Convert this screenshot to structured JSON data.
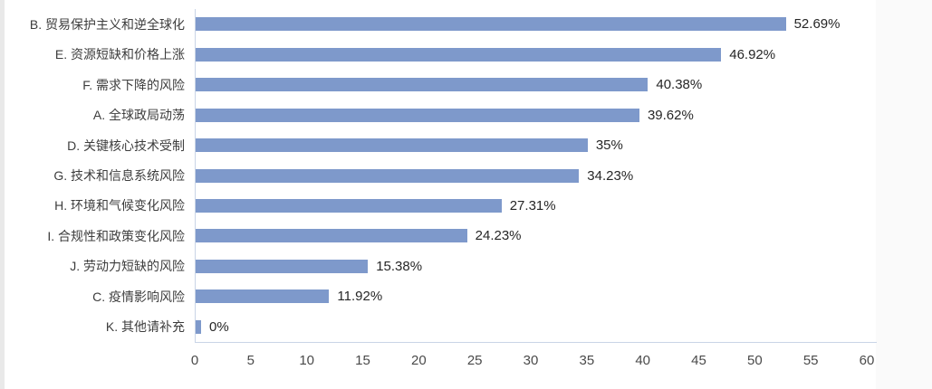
{
  "chart_data": {
    "type": "bar",
    "orientation": "horizontal",
    "title": "",
    "xlabel": "",
    "ylabel": "",
    "categories": [
      "B. 贸易保护主义和逆全球化",
      "E. 资源短缺和价格上涨",
      "F. 需求下降的风险",
      "A. 全球政局动荡",
      "D. 关键核心技术受制",
      "G. 技术和信息系统风险",
      "H. 环境和气候变化风险",
      "I. 合规性和政策变化风险",
      "J. 劳动力短缺的风险",
      "C. 疫情影响风险",
      "K. 其他请补充"
    ],
    "values": [
      52.69,
      46.92,
      40.38,
      39.62,
      35,
      34.23,
      27.31,
      24.23,
      15.38,
      11.92,
      0
    ],
    "value_labels": [
      "52.69%",
      "46.92%",
      "40.38%",
      "39.62%",
      "35%",
      "34.23%",
      "27.31%",
      "24.23%",
      "15.38%",
      "11.92%",
      "0%"
    ],
    "x_ticks": [
      0,
      5,
      10,
      15,
      20,
      25,
      30,
      35,
      40,
      45,
      50,
      55,
      60
    ],
    "xlim": [
      0,
      60
    ],
    "grid": false,
    "legend": false,
    "colors": {
      "bar_fill": "#7e99cb",
      "axis_line": "#c9d4e6",
      "category_text": "#3d3d3d",
      "value_text": "#262626",
      "tick_text": "#4a4a4a"
    }
  }
}
